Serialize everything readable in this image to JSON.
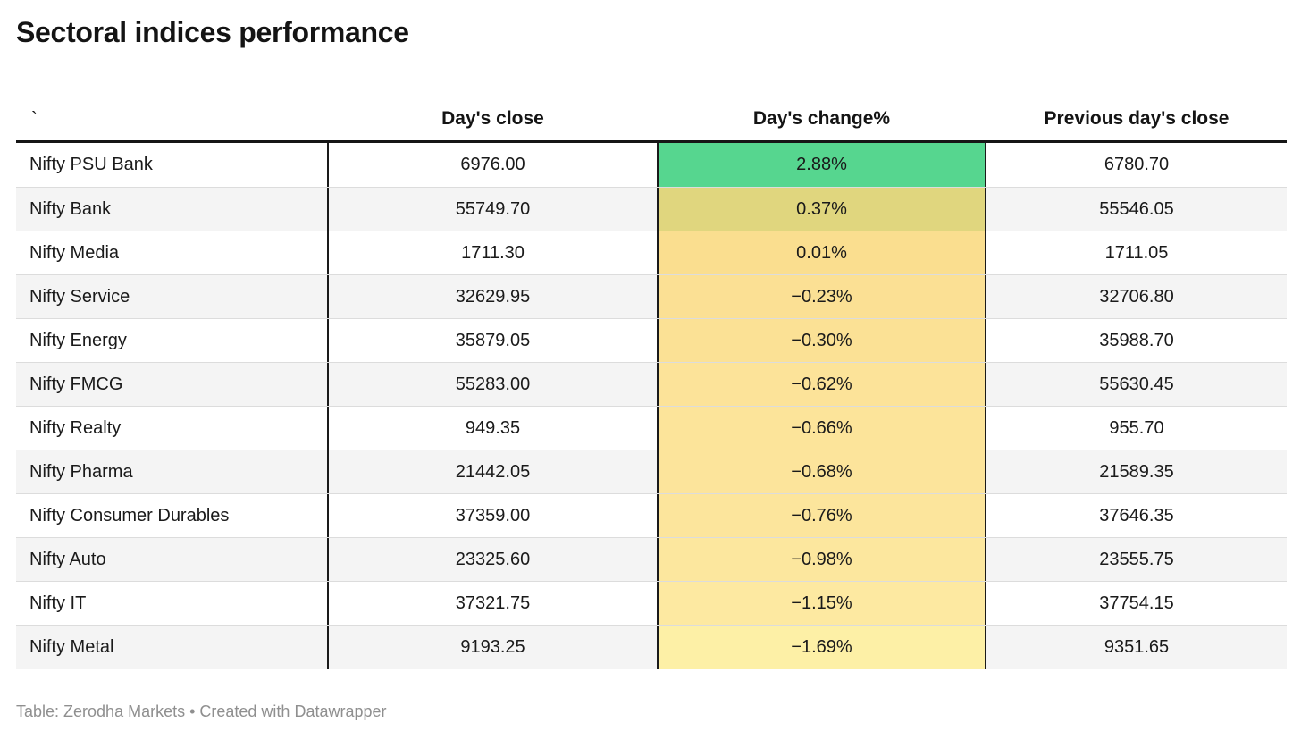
{
  "title": "Sectoral indices performance",
  "header": {
    "col0": "`",
    "col1": "Day's close",
    "col2": "Day's change%",
    "col3": "Previous day's close"
  },
  "chart_data": {
    "type": "table",
    "title": "Sectoral indices performance",
    "columns": [
      "",
      "Day's close",
      "Day's change%",
      "Previous day's close"
    ],
    "heatmap_column": "Day's change%",
    "heat_scale": {
      "max_positive_color": "#56d68f",
      "min_negative_color": "#fdf0a6"
    },
    "rows": [
      {
        "name": "Nifty PSU Bank",
        "close": "6976.00",
        "change": "2.88%",
        "prev": "6780.70",
        "cell_color": "#56d68f"
      },
      {
        "name": "Nifty Bank",
        "close": "55749.70",
        "change": "0.37%",
        "prev": "55546.05",
        "cell_color": "#e0d67e"
      },
      {
        "name": "Nifty Media",
        "close": "1711.30",
        "change": "0.01%",
        "prev": "1711.05",
        "cell_color": "#fade8f"
      },
      {
        "name": "Nifty Service",
        "close": "32629.95",
        "change": "−0.23%",
        "prev": "32706.80",
        "cell_color": "#fbe094"
      },
      {
        "name": "Nifty Energy",
        "close": "35879.05",
        "change": "−0.30%",
        "prev": "35988.70",
        "cell_color": "#fbe195"
      },
      {
        "name": "Nifty FMCG",
        "close": "55283.00",
        "change": "−0.62%",
        "prev": "55630.45",
        "cell_color": "#fce399"
      },
      {
        "name": "Nifty Realty",
        "close": "949.35",
        "change": "−0.66%",
        "prev": "955.70",
        "cell_color": "#fce49a"
      },
      {
        "name": "Nifty Pharma",
        "close": "21442.05",
        "change": "−0.68%",
        "prev": "21589.35",
        "cell_color": "#fce49b"
      },
      {
        "name": "Nifty Consumer Durables",
        "close": "37359.00",
        "change": "−0.76%",
        "prev": "37646.35",
        "cell_color": "#fce59c"
      },
      {
        "name": "Nifty Auto",
        "close": "23325.60",
        "change": "−0.98%",
        "prev": "23555.75",
        "cell_color": "#fce79e"
      },
      {
        "name": "Nifty IT",
        "close": "37321.75",
        "change": "−1.15%",
        "prev": "37754.15",
        "cell_color": "#fde9a1"
      },
      {
        "name": "Nifty Metal",
        "close": "9193.25",
        "change": "−1.69%",
        "prev": "9351.65",
        "cell_color": "#fdf0a6"
      }
    ]
  },
  "footer": {
    "credit": "Table: Zerodha Markets • Created with Datawrapper"
  },
  "colors": {
    "row_stripe": "#f4f4f4",
    "row_separator": "#dcdcdc",
    "column_border": "#1a1a1a",
    "header_rule": "#161616",
    "footer_text": "#8f8f8f"
  }
}
